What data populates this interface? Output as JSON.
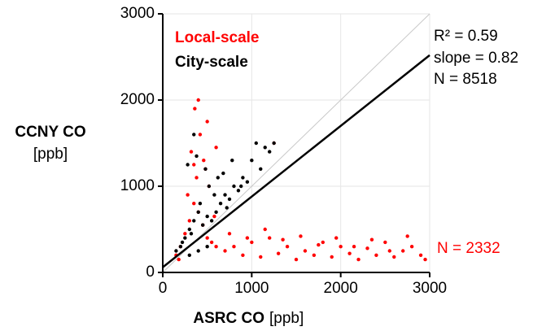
{
  "chart_data": {
    "type": "scatter",
    "x_label": "ASRC CO",
    "x_label_unit": "[ppb]",
    "y_label": "CCNY CO",
    "y_label_unit": "[ppb]",
    "xlim": [
      0,
      3000
    ],
    "ylim": [
      0,
      3000
    ],
    "xticks": [
      0,
      1000,
      2000,
      3000
    ],
    "yticks": [
      0,
      1000,
      2000,
      3000
    ],
    "grid": true,
    "series": [
      {
        "name": "Local-scale",
        "color": "#ff0000",
        "x": [
          150,
          200,
          250,
          300,
          350,
          400,
          450,
          500,
          550,
          600,
          180,
          280,
          380,
          480,
          580,
          320,
          420,
          520,
          360,
          460,
          700,
          800,
          900,
          1000,
          1100,
          1200,
          1300,
          1400,
          1500,
          1600,
          1700,
          1800,
          1900,
          2000,
          2100,
          2200,
          2300,
          2400,
          2500,
          2600,
          2700,
          2800,
          2900,
          2950,
          750,
          950,
          1150,
          1350,
          1550,
          1750,
          1950,
          2150,
          2350,
          2550,
          2750,
          400,
          500,
          350,
          600,
          1250
        ],
        "values": [
          200,
          300,
          450,
          600,
          800,
          700,
          550,
          400,
          350,
          300,
          150,
          900,
          1100,
          1200,
          650,
          1400,
          1600,
          1000,
          1900,
          1300,
          250,
          300,
          200,
          350,
          180,
          400,
          220,
          300,
          150,
          250,
          200,
          350,
          180,
          300,
          220,
          150,
          280,
          200,
          350,
          180,
          250,
          300,
          200,
          150,
          450,
          400,
          500,
          380,
          420,
          320,
          400,
          300,
          380,
          250,
          420,
          2000,
          1750,
          1250,
          1450,
          1500
        ]
      },
      {
        "name": "City-scale",
        "color": "#000000",
        "x": [
          150,
          200,
          250,
          300,
          350,
          400,
          450,
          500,
          550,
          600,
          650,
          700,
          750,
          800,
          850,
          900,
          950,
          1000,
          1100,
          1200,
          1250,
          220,
          320,
          420,
          520,
          620,
          720,
          280,
          380,
          480,
          580,
          680,
          880,
          1050,
          1150,
          780,
          300,
          400,
          500,
          350
        ],
        "values": [
          250,
          300,
          400,
          500,
          600,
          700,
          550,
          650,
          600,
          700,
          800,
          900,
          850,
          1000,
          950,
          1100,
          1050,
          1300,
          1200,
          1400,
          1500,
          350,
          450,
          800,
          1000,
          1100,
          750,
          1250,
          1350,
          1200,
          900,
          1150,
          1000,
          1500,
          1450,
          1300,
          200,
          250,
          300,
          1600
        ]
      }
    ],
    "identity_line": {
      "x": [
        0,
        3000
      ],
      "y": [
        0,
        3000
      ],
      "color": "#c8c8c8"
    },
    "fit_line": {
      "x": [
        0,
        3000
      ],
      "y": [
        60,
        2520
      ],
      "color": "#000000"
    },
    "annotations": [
      {
        "text": "R² = 0.59",
        "color": "#000000"
      },
      {
        "text": "slope =  0.82",
        "color": "#000000"
      },
      {
        "text": "N = 8518",
        "color": "#000000"
      },
      {
        "text": "N = 2332",
        "color": "#ff0000"
      }
    ]
  }
}
